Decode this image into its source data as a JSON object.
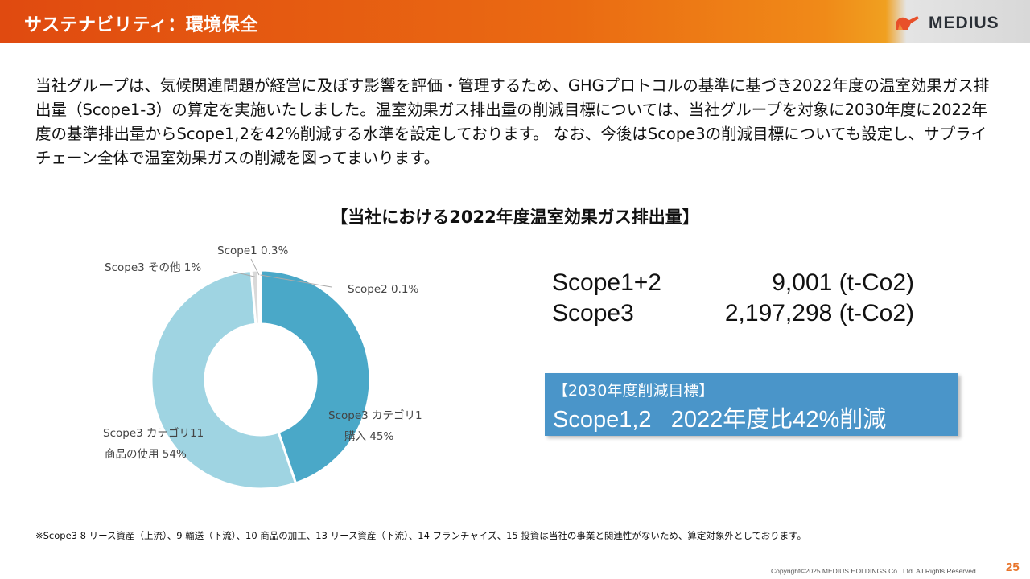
{
  "header": {
    "title": "サステナビリティ：環境保全",
    "logo_text": "MEDIUS"
  },
  "intro": {
    "text": "当社グループは、気候関連問題が経営に及ぼす影響を評価・管理するため、GHGプロトコルの基準に基づき2022年度の温室効果ガス排出量（Scope1-3）の算定を実施いたしました。温室効果ガス排出量の削減目標については、当社グループを対象に2030年度に2022年度の基準排出量からScope1,2を42%削減する水準を設定しております。 なお、今後はScope3の削減目標についても設定し、サプライチェーン全体で温室効果ガスの削減を図ってまいります。"
  },
  "chart_data": {
    "type": "pie",
    "title": "【当社における2022年度温室効果ガス排出量】",
    "categories": [
      "Scope3 カテゴリ1 購入",
      "Scope3 カテゴリ11 商品の使用",
      "Scope3 その他",
      "Scope1",
      "Scope2"
    ],
    "values": [
      45,
      54,
      1,
      0.3,
      0.1
    ],
    "labels": [
      {
        "line1": "Scope3 カテゴリ1",
        "line2": "購入 45%"
      },
      {
        "line1": "Scope3 カテゴリ11",
        "line2": "商品の使用  54%"
      },
      {
        "line1": "Scope3 その他 1%",
        "line2": ""
      },
      {
        "line1": "Scope1 0.3%",
        "line2": ""
      },
      {
        "line1": "Scope2 0.1%",
        "line2": ""
      }
    ],
    "colors": [
      "#4aa8c8",
      "#9fd4e2",
      "#d9d9d9",
      "#c8c8c8",
      "#bdbdbd"
    ],
    "donut": true
  },
  "totals": [
    {
      "label": "Scope1+2",
      "value": "9,001 (t-Co2)"
    },
    {
      "label": "Scope3",
      "value": "2,197,298 (t-Co2)"
    }
  ],
  "target": {
    "heading": "【2030年度削減目標】",
    "text": "Scope1,2   2022年度比42%削減"
  },
  "footnote": "※Scope3 8 リース資産（上流）、9 輸送（下流）、10 商品の加工、13 リース資産（下流）、14 フランチャイズ、15 投資は当社の事業と関連性がないため、算定対象外としております。",
  "footer": {
    "copyright": "Copyright©2025 MEDIUS HOLDINGS Co., Ltd. All Rights Reserved",
    "page_number": "25"
  }
}
